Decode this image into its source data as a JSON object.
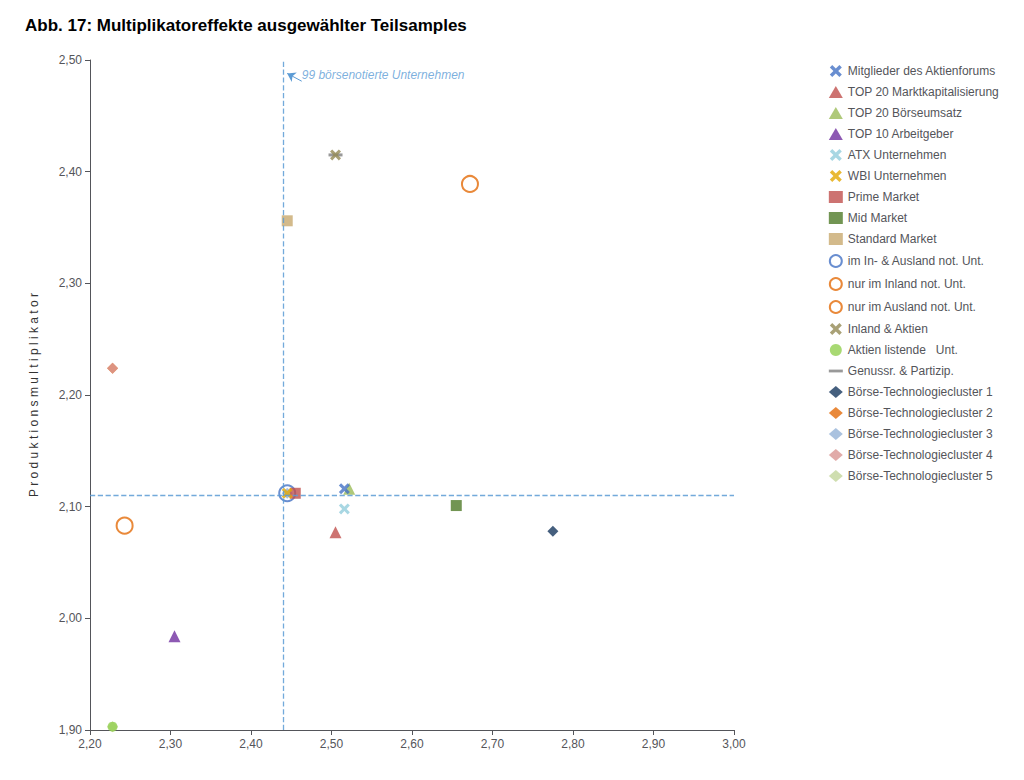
{
  "chart_data": {
    "type": "scatter",
    "title": "Abb. 17: Multiplikatoreffekte ausgewählter Teilsamples",
    "ylabel": "P r o d u k t i o n s m u l t i p l i k a t o r",
    "xlim": [
      2.2,
      3.0
    ],
    "ylim": [
      1.9,
      2.5
    ],
    "xticks": [
      {
        "value": 2.2,
        "label": "2,20"
      },
      {
        "value": 2.3,
        "label": "2,30"
      },
      {
        "value": 2.4,
        "label": "2,40"
      },
      {
        "value": 2.5,
        "label": "2,50"
      },
      {
        "value": 2.6,
        "label": "2,60"
      },
      {
        "value": 2.7,
        "label": "2,70"
      },
      {
        "value": 2.8,
        "label": "2,80"
      },
      {
        "value": 2.9,
        "label": "2,90"
      },
      {
        "value": 3.0,
        "label": "3,00"
      }
    ],
    "yticks": [
      {
        "value": 1.9,
        "label": "1,90"
      },
      {
        "value": 2.0,
        "label": "2,00"
      },
      {
        "value": 2.1,
        "label": "2,10"
      },
      {
        "value": 2.2,
        "label": "2,20"
      },
      {
        "value": 2.3,
        "label": "2,30"
      },
      {
        "value": 2.4,
        "label": "2,40"
      },
      {
        "value": 2.5,
        "label": "2,50"
      }
    ],
    "grid": false,
    "legend": "right",
    "reference_lines": [
      {
        "axis": "x",
        "value": 2.445,
        "color": "#5B9BD5",
        "line_style": "dashed"
      },
      {
        "axis": "y",
        "value": 2.112,
        "color": "#5B9BD5",
        "line_style": "dashed"
      }
    ],
    "annotations": [
      {
        "text": "99 börsenotierte Unternehmen",
        "x": 2.463,
        "y": 2.481,
        "arrow_x": 2.445,
        "arrow_y": 2.488,
        "color": "#5B9BD5"
      }
    ],
    "series": [
      {
        "name": "Mitglieder des Aktienforums",
        "x": [
          2.516
        ],
        "values": [
          2.116
        ],
        "marker": "x",
        "color": "#4472C4"
      },
      {
        "name": "TOP 20 Marktkapitalisierung",
        "x": [
          2.505
        ],
        "values": [
          2.077
        ],
        "marker": "triangle",
        "color": "#C0504D"
      },
      {
        "name": "TOP 20 Börseumsatz",
        "x": [
          2.522
        ],
        "values": [
          2.116
        ],
        "marker": "triangle",
        "color": "#9BBB59"
      },
      {
        "name": "TOP 10 Arbeitgeber",
        "x": [
          2.305
        ],
        "values": [
          1.984
        ],
        "marker": "triangle",
        "color": "#7030A0"
      },
      {
        "name": "ATX Unternehmen",
        "x": [
          2.516
        ],
        "values": [
          2.098
        ],
        "marker": "x",
        "color": "#92CDDC"
      },
      {
        "name": "WBI Unternehmen",
        "x": [
          2.445
        ],
        "values": [
          2.112
        ],
        "marker": "x",
        "color": "#E3A800"
      },
      {
        "name": "Prime Market",
        "x": [
          2.455
        ],
        "values": [
          2.112
        ],
        "marker": "square",
        "color": "#C0504D"
      },
      {
        "name": "Mid Market",
        "x": [
          2.655
        ],
        "values": [
          2.101
        ],
        "marker": "square",
        "color": "#4F7A28"
      },
      {
        "name": "Standard Market",
        "x": [
          2.445
        ],
        "values": [
          2.356
        ],
        "marker": "square",
        "color": "#C8A96E"
      },
      {
        "name": "im In- & Ausland not. Unt.",
        "x": [
          2.445
        ],
        "values": [
          2.112
        ],
        "marker": "open_circle",
        "color": "#4472C4"
      },
      {
        "name": "nur im Inland not. Unt.",
        "x": [
          2.243
        ],
        "values": [
          2.083
        ],
        "marker": "open_circle",
        "color": "#E36C09"
      },
      {
        "name": "nur im Ausland not. Unt.",
        "x": [
          2.672
        ],
        "values": [
          2.389
        ],
        "marker": "open_circle",
        "color": "#E36C09"
      },
      {
        "name": "Inland & Aktien",
        "x": [
          2.505
        ],
        "values": [
          2.415
        ],
        "marker": "x",
        "color": "#948A54"
      },
      {
        "name": "Aktien listende   Unt.",
        "x": [
          2.228
        ],
        "values": [
          1.903
        ],
        "marker": "circle",
        "color": "#92D050"
      },
      {
        "name": "Genussr. & Partizip.",
        "x": [
          2.505
        ],
        "values": [
          2.415
        ],
        "marker": "hline",
        "color": "#7F7F7F"
      },
      {
        "name": "Börse-Technologiecluster 1",
        "x": [
          2.775
        ],
        "values": [
          2.078
        ],
        "marker": "diamond",
        "color": "#17375E"
      },
      {
        "name": "Börse-Technologiecluster 2",
        "x": [
          2.228
        ],
        "values": [
          2.224
        ],
        "marker": "diamond",
        "color": "#E36C09"
      },
      {
        "name": "Börse-Technologiecluster 3",
        "x": [
          2.445
        ],
        "values": [
          2.112
        ],
        "marker": "diamond",
        "color": "#95B3D7"
      },
      {
        "name": "Börse-Technologiecluster 4",
        "x": [
          2.228
        ],
        "values": [
          2.224
        ],
        "marker": "diamond",
        "color": "#D99694"
      },
      {
        "name": "Börse-Technologiecluster 5",
        "x": [
          2.228
        ],
        "values": [
          1.903
        ],
        "marker": "diamond",
        "color": "#C3D69B"
      }
    ]
  }
}
